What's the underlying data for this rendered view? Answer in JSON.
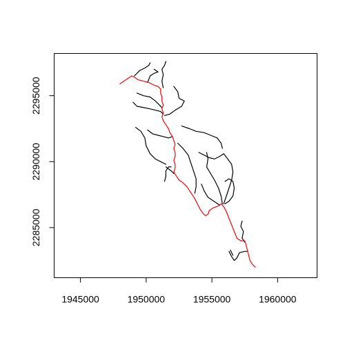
{
  "chart_data": {
    "type": "line",
    "title": "",
    "xlabel": "",
    "ylabel": "",
    "xlim": [
      1943000,
      1963000
    ],
    "ylim": [
      2281200,
      2298200
    ],
    "x_ticks": [
      1945000,
      1950000,
      1955000,
      1960000
    ],
    "x_tick_labels": [
      "1945000",
      "1950000",
      "1955000",
      "1960000"
    ],
    "y_ticks": [
      2285000,
      2290000,
      2295000
    ],
    "y_tick_labels": [
      "2285000",
      "2290000",
      "2295000"
    ],
    "grid": false,
    "legend": "none",
    "colors": {
      "main_stem": "#ff0000",
      "tributary": "#000000"
    },
    "series": [
      {
        "role": "main_stem",
        "color": "#ff0000",
        "points": [
          [
            1948000,
            2295900
          ],
          [
            1948300,
            2296100
          ],
          [
            1948600,
            2296300
          ],
          [
            1948900,
            2296500
          ],
          [
            1949100,
            2296400
          ],
          [
            1949400,
            2296200
          ],
          [
            1949800,
            2296100
          ],
          [
            1950200,
            2296000
          ],
          [
            1950600,
            2295800
          ],
          [
            1950900,
            2295700
          ],
          [
            1951100,
            2295500
          ],
          [
            1951100,
            2295200
          ],
          [
            1951200,
            2294900
          ],
          [
            1951200,
            2294600
          ],
          [
            1951300,
            2294300
          ],
          [
            1951200,
            2294000
          ],
          [
            1951300,
            2293700
          ],
          [
            1951200,
            2293400
          ],
          [
            1951300,
            2293100
          ],
          [
            1951500,
            2292800
          ],
          [
            1951700,
            2292500
          ],
          [
            1951800,
            2292200
          ],
          [
            1952000,
            2291900
          ],
          [
            1952100,
            2291600
          ],
          [
            1952200,
            2291300
          ],
          [
            1952100,
            2291000
          ],
          [
            1952200,
            2290700
          ],
          [
            1952200,
            2290400
          ],
          [
            1952100,
            2290100
          ],
          [
            1952200,
            2289800
          ],
          [
            1952200,
            2289500
          ],
          [
            1952100,
            2289200
          ],
          [
            1952300,
            2288900
          ],
          [
            1952500,
            2288600
          ],
          [
            1952800,
            2288400
          ],
          [
            1953100,
            2288100
          ],
          [
            1953300,
            2287800
          ],
          [
            1953500,
            2287500
          ],
          [
            1953700,
            2287200
          ],
          [
            1953900,
            2286800
          ],
          [
            1954100,
            2286400
          ],
          [
            1954300,
            2286100
          ],
          [
            1954500,
            2285900
          ],
          [
            1954700,
            2286000
          ],
          [
            1954800,
            2286300
          ],
          [
            1955100,
            2286500
          ],
          [
            1955400,
            2286600
          ],
          [
            1955700,
            2286800
          ],
          [
            1955900,
            2286600
          ],
          [
            1956100,
            2286200
          ],
          [
            1956300,
            2285700
          ],
          [
            1956500,
            2285200
          ],
          [
            1956700,
            2284700
          ],
          [
            1956900,
            2284200
          ],
          [
            1957200,
            2284000
          ],
          [
            1957500,
            2284000
          ],
          [
            1957600,
            2283700
          ],
          [
            1957700,
            2283300
          ],
          [
            1957800,
            2282900
          ],
          [
            1957900,
            2282500
          ],
          [
            1958100,
            2282200
          ],
          [
            1958300,
            2282000
          ]
        ]
      },
      {
        "role": "tributary",
        "color": "#000000",
        "points": [
          [
            1949100,
            2296500
          ],
          [
            1949500,
            2296900
          ],
          [
            1949900,
            2297100
          ],
          [
            1950200,
            2297300
          ],
          [
            1950300,
            2297500
          ]
        ]
      },
      {
        "role": "tributary",
        "color": "#000000",
        "points": [
          [
            1950100,
            2296000
          ],
          [
            1950300,
            2296500
          ],
          [
            1950600,
            2296700
          ],
          [
            1950900,
            2296800
          ],
          [
            1950600,
            2297000
          ]
        ]
      },
      {
        "role": "tributary",
        "color": "#000000",
        "points": [
          [
            1951300,
            2295600
          ],
          [
            1951200,
            2296100
          ],
          [
            1951300,
            2296600
          ],
          [
            1951200,
            2297000
          ],
          [
            1951400,
            2297300
          ],
          [
            1951500,
            2297600
          ]
        ]
      },
      {
        "role": "tributary",
        "color": "#000000",
        "points": [
          [
            1949300,
            2295200
          ],
          [
            1949800,
            2295000
          ],
          [
            1950300,
            2294900
          ],
          [
            1950700,
            2294600
          ],
          [
            1951000,
            2294300
          ],
          [
            1951200,
            2294100
          ]
        ]
      },
      {
        "role": "tributary",
        "color": "#000000",
        "points": [
          [
            1949000,
            2294500
          ],
          [
            1949300,
            2294200
          ],
          [
            1949800,
            2294100
          ],
          [
            1950300,
            2294000
          ],
          [
            1950700,
            2293900
          ],
          [
            1951100,
            2293800
          ],
          [
            1951300,
            2293600
          ]
        ]
      },
      {
        "role": "tributary",
        "color": "#000000",
        "points": [
          [
            1952100,
            2295700
          ],
          [
            1952400,
            2295300
          ],
          [
            1952500,
            2294800
          ],
          [
            1952900,
            2294600
          ],
          [
            1952700,
            2294200
          ],
          [
            1952200,
            2293900
          ],
          [
            1951800,
            2293600
          ],
          [
            1951400,
            2293500
          ]
        ]
      },
      {
        "role": "tributary",
        "color": "#000000",
        "points": [
          [
            1949200,
            2292600
          ],
          [
            1949600,
            2292300
          ],
          [
            1949900,
            2291800
          ],
          [
            1950000,
            2291200
          ],
          [
            1950300,
            2290600
          ],
          [
            1950700,
            2290200
          ],
          [
            1951100,
            2290000
          ],
          [
            1951500,
            2289800
          ]
        ]
      },
      {
        "role": "tributary",
        "color": "#000000",
        "points": [
          [
            1950100,
            2292400
          ],
          [
            1950500,
            2292100
          ],
          [
            1950900,
            2292000
          ],
          [
            1951300,
            2291900
          ],
          [
            1951700,
            2291800
          ],
          [
            1952000,
            2291900
          ]
        ]
      },
      {
        "role": "tributary",
        "color": "#000000",
        "points": [
          [
            1951400,
            2288500
          ],
          [
            1951500,
            2288900
          ],
          [
            1951500,
            2289300
          ],
          [
            1951700,
            2289600
          ],
          [
            1951900,
            2289600
          ]
        ]
      },
      {
        "role": "tributary",
        "color": "#000000",
        "points": [
          [
            1951500,
            2289600
          ],
          [
            1951900,
            2289300
          ],
          [
            1952100,
            2289100
          ]
        ]
      },
      {
        "role": "tributary",
        "color": "#000000",
        "points": [
          [
            1952700,
            2292700
          ],
          [
            1953300,
            2292500
          ],
          [
            1953800,
            2292300
          ],
          [
            1954400,
            2292200
          ],
          [
            1954900,
            2292000
          ],
          [
            1955400,
            2291800
          ],
          [
            1955700,
            2291400
          ],
          [
            1955800,
            2291000
          ]
        ]
      },
      {
        "role": "tributary",
        "color": "#000000",
        "points": [
          [
            1952400,
            2291400
          ],
          [
            1952800,
            2291000
          ],
          [
            1953200,
            2290500
          ],
          [
            1953400,
            2289900
          ],
          [
            1953600,
            2289300
          ],
          [
            1953800,
            2288700
          ],
          [
            1953800,
            2288100
          ],
          [
            1953700,
            2287600
          ]
        ]
      },
      {
        "role": "tributary",
        "color": "#000000",
        "points": [
          [
            1954000,
            2290700
          ],
          [
            1954400,
            2290500
          ],
          [
            1954800,
            2290300
          ],
          [
            1955200,
            2290200
          ],
          [
            1955600,
            2290400
          ],
          [
            1955900,
            2290600
          ],
          [
            1956200,
            2290200
          ],
          [
            1956500,
            2289800
          ],
          [
            1956600,
            2289200
          ],
          [
            1956500,
            2288600
          ],
          [
            1956300,
            2288000
          ],
          [
            1956100,
            2287400
          ],
          [
            1955900,
            2286800
          ]
        ]
      },
      {
        "role": "tributary",
        "color": "#000000",
        "points": [
          [
            1954600,
            2290700
          ],
          [
            1954700,
            2290200
          ],
          [
            1954600,
            2289600
          ],
          [
            1954900,
            2289100
          ],
          [
            1955200,
            2288600
          ],
          [
            1955500,
            2288000
          ],
          [
            1955700,
            2287400
          ],
          [
            1955800,
            2286800
          ]
        ]
      },
      {
        "role": "tributary",
        "color": "#000000",
        "points": [
          [
            1954200,
            2288300
          ],
          [
            1954400,
            2287800
          ],
          [
            1954700,
            2287300
          ],
          [
            1955000,
            2287100
          ],
          [
            1955300,
            2286900
          ],
          [
            1955600,
            2286700
          ]
        ]
      },
      {
        "role": "tributary",
        "color": "#000000",
        "points": [
          [
            1956000,
            2288500
          ],
          [
            1956300,
            2288700
          ],
          [
            1956600,
            2288500
          ],
          [
            1956700,
            2288000
          ],
          [
            1956600,
            2287400
          ],
          [
            1956300,
            2287000
          ],
          [
            1956000,
            2286800
          ]
        ]
      },
      {
        "role": "tributary",
        "color": "#000000",
        "points": [
          [
            1957300,
            2285500
          ],
          [
            1957200,
            2285100
          ],
          [
            1957400,
            2284700
          ],
          [
            1957300,
            2284200
          ],
          [
            1957500,
            2283900
          ]
        ]
      },
      {
        "role": "tributary",
        "color": "#000000",
        "points": [
          [
            1956300,
            2283200
          ],
          [
            1956500,
            2282800
          ],
          [
            1956700,
            2282500
          ],
          [
            1956900,
            2282700
          ],
          [
            1957100,
            2283100
          ],
          [
            1957500,
            2283200
          ],
          [
            1957700,
            2283200
          ]
        ]
      },
      {
        "role": "tributary",
        "color": "#000000",
        "points": [
          [
            1956400,
            2283300
          ],
          [
            1956600,
            2282900
          ]
        ]
      }
    ]
  }
}
